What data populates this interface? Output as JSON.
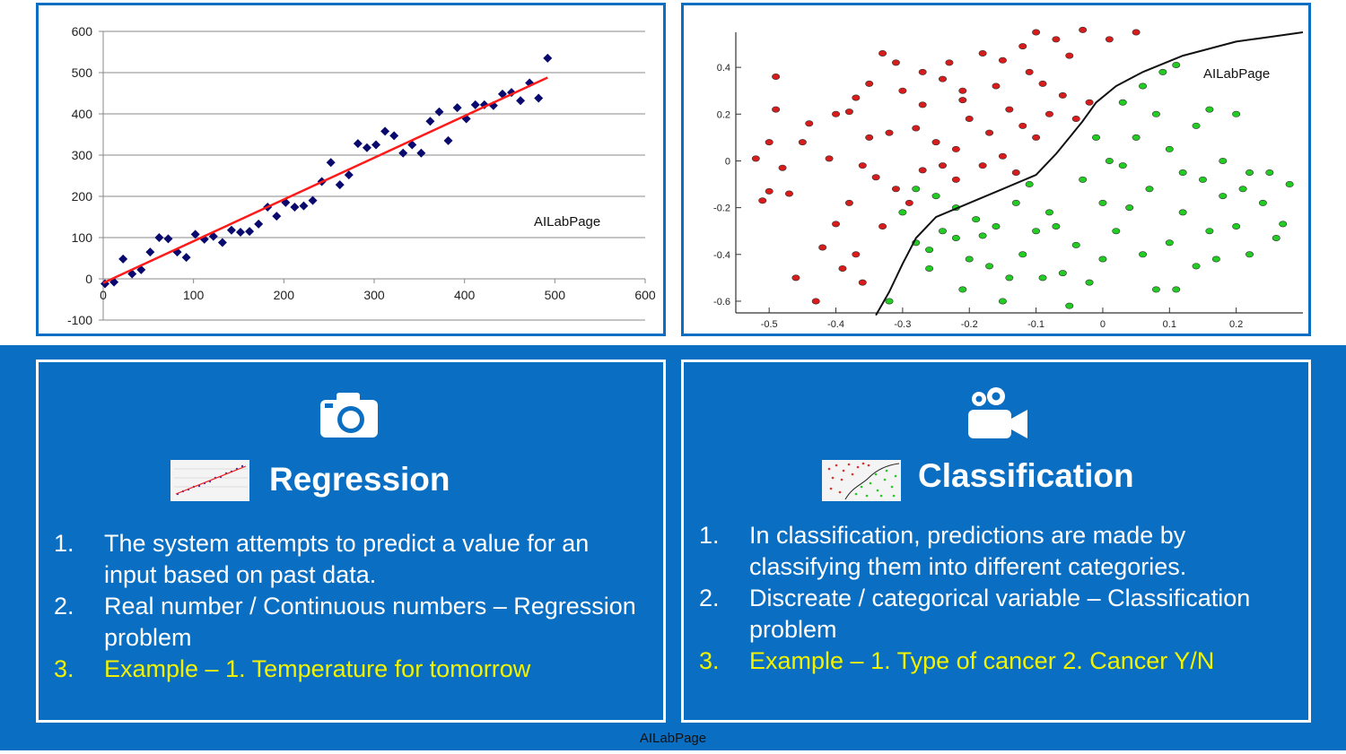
{
  "colors": {
    "band": "#0a6fc2",
    "regression_point": "#0a0a6e",
    "regression_line": "#ff1a1a",
    "class_red": "#d81b1b",
    "class_green": "#22cc22",
    "highlight_text": "#f2f200"
  },
  "watermark": "AILabPage",
  "chart_data": [
    {
      "type": "scatter",
      "name": "regression",
      "title": "",
      "xlabel": "",
      "ylabel": "",
      "xlim": [
        0,
        600
      ],
      "ylim": [
        -100,
        600
      ],
      "xticks": [
        "0",
        "100",
        "200",
        "300",
        "400",
        "500",
        "600"
      ],
      "yticks": [
        "600",
        "500",
        "400",
        "300",
        "200",
        "100",
        "0",
        "-100"
      ],
      "grid": true,
      "annotation": "AILabPage",
      "points": [
        [
          2,
          -12
        ],
        [
          12,
          -8
        ],
        [
          22,
          48
        ],
        [
          32,
          12
        ],
        [
          42,
          22
        ],
        [
          52,
          65
        ],
        [
          62,
          100
        ],
        [
          72,
          97
        ],
        [
          82,
          65
        ],
        [
          92,
          52
        ],
        [
          102,
          108
        ],
        [
          112,
          96
        ],
        [
          122,
          103
        ],
        [
          132,
          88
        ],
        [
          142,
          118
        ],
        [
          152,
          113
        ],
        [
          162,
          115
        ],
        [
          172,
          133
        ],
        [
          182,
          174
        ],
        [
          192,
          152
        ],
        [
          202,
          185
        ],
        [
          212,
          174
        ],
        [
          222,
          177
        ],
        [
          232,
          190
        ],
        [
          242,
          236
        ],
        [
          252,
          282
        ],
        [
          262,
          228
        ],
        [
          272,
          252
        ],
        [
          282,
          328
        ],
        [
          292,
          318
        ],
        [
          302,
          325
        ],
        [
          312,
          358
        ],
        [
          322,
          347
        ],
        [
          332,
          305
        ],
        [
          342,
          325
        ],
        [
          352,
          305
        ],
        [
          362,
          382
        ],
        [
          372,
          405
        ],
        [
          382,
          335
        ],
        [
          392,
          415
        ],
        [
          402,
          388
        ],
        [
          412,
          422
        ],
        [
          422,
          422
        ],
        [
          432,
          420
        ],
        [
          442,
          448
        ],
        [
          452,
          452
        ],
        [
          462,
          432
        ],
        [
          472,
          475
        ],
        [
          482,
          438
        ],
        [
          492,
          535
        ]
      ],
      "fit_line": {
        "x": [
          0,
          492
        ],
        "y": [
          -10,
          488
        ]
      }
    },
    {
      "type": "scatter",
      "name": "classification",
      "title": "",
      "xlim": [
        -0.55,
        0.3
      ],
      "ylim": [
        -0.65,
        0.55
      ],
      "xticks": [
        "-0.5",
        "-0.4",
        "-0.3",
        "-0.2",
        "-0.1",
        "0",
        "0.1",
        "0.2"
      ],
      "yticks": [
        "0.4",
        "0.2",
        "0",
        "-0.2",
        "-0.4",
        "-0.6"
      ],
      "annotation": "AILabPage",
      "decision_boundary": {
        "x": [
          -0.34,
          -0.32,
          -0.3,
          -0.28,
          -0.25,
          -0.2,
          -0.15,
          -0.1,
          -0.07,
          -0.05,
          -0.03,
          -0.01,
          0.02,
          0.06,
          0.12,
          0.2,
          0.25,
          0.3
        ],
        "y": [
          -0.66,
          -0.56,
          -0.44,
          -0.33,
          -0.24,
          -0.18,
          -0.12,
          -0.06,
          0.03,
          0.1,
          0.17,
          0.25,
          0.32,
          0.38,
          0.45,
          0.51,
          0.53,
          0.55
        ]
      },
      "series": [
        {
          "name": "class A",
          "color": "#d81b1b",
          "points": [
            [
              -0.58,
              0.12
            ],
            [
              -0.52,
              0.01
            ],
            [
              -0.49,
              0.36
            ],
            [
              -0.49,
              0.22
            ],
            [
              -0.5,
              0.08
            ],
            [
              -0.48,
              -0.03
            ],
            [
              -0.5,
              -0.13
            ],
            [
              -0.47,
              -0.14
            ],
            [
              -0.51,
              -0.17
            ],
            [
              -0.45,
              0.08
            ],
            [
              -0.4,
              0.2
            ],
            [
              -0.41,
              0.01
            ],
            [
              -0.38,
              0.21
            ],
            [
              -0.37,
              0.27
            ],
            [
              -0.35,
              0.33
            ],
            [
              -0.33,
              0.46
            ],
            [
              -0.31,
              0.42
            ],
            [
              -0.3,
              0.3
            ],
            [
              -0.27,
              0.38
            ],
            [
              -0.24,
              0.35
            ],
            [
              -0.21,
              0.3
            ],
            [
              -0.18,
              0.46
            ],
            [
              -0.15,
              0.43
            ],
            [
              -0.12,
              0.49
            ],
            [
              -0.1,
              0.55
            ],
            [
              -0.07,
              0.52
            ],
            [
              -0.05,
              0.45
            ],
            [
              -0.03,
              0.56
            ],
            [
              0.01,
              0.52
            ],
            [
              0.05,
              0.55
            ],
            [
              -0.35,
              0.1
            ],
            [
              -0.32,
              0.12
            ],
            [
              -0.28,
              0.14
            ],
            [
              -0.25,
              0.08
            ],
            [
              -0.22,
              0.05
            ],
            [
              -0.2,
              0.18
            ],
            [
              -0.17,
              0.12
            ],
            [
              -0.14,
              0.22
            ],
            [
              -0.12,
              0.15
            ],
            [
              -0.1,
              0.1
            ],
            [
              -0.08,
              0.2
            ],
            [
              -0.06,
              0.28
            ],
            [
              -0.04,
              0.18
            ],
            [
              -0.02,
              0.25
            ],
            [
              -0.36,
              -0.02
            ],
            [
              -0.34,
              -0.07
            ],
            [
              -0.31,
              -0.12
            ],
            [
              -0.29,
              -0.18
            ],
            [
              -0.27,
              -0.04
            ],
            [
              -0.24,
              -0.02
            ],
            [
              -0.22,
              -0.08
            ],
            [
              -0.18,
              -0.02
            ],
            [
              -0.15,
              0.02
            ],
            [
              -0.13,
              -0.05
            ],
            [
              -0.38,
              -0.18
            ],
            [
              -0.4,
              -0.27
            ],
            [
              -0.42,
              -0.37
            ],
            [
              -0.39,
              -0.46
            ],
            [
              -0.36,
              -0.52
            ],
            [
              -0.33,
              -0.28
            ],
            [
              -0.43,
              -0.6
            ],
            [
              -0.37,
              -0.4
            ],
            [
              -0.27,
              0.24
            ],
            [
              -0.16,
              0.32
            ],
            [
              -0.09,
              0.33
            ],
            [
              -0.23,
              0.42
            ],
            [
              -0.44,
              0.16
            ],
            [
              -0.46,
              -0.5
            ],
            [
              -0.21,
              0.26
            ],
            [
              -0.11,
              0.38
            ]
          ]
        },
        {
          "name": "class B",
          "color": "#22cc22",
          "points": [
            [
              -0.3,
              -0.22
            ],
            [
              -0.28,
              -0.35
            ],
            [
              -0.26,
              -0.46
            ],
            [
              -0.24,
              -0.3
            ],
            [
              -0.22,
              -0.2
            ],
            [
              -0.2,
              -0.42
            ],
            [
              -0.18,
              -0.32
            ],
            [
              -0.16,
              -0.28
            ],
            [
              -0.14,
              -0.5
            ],
            [
              -0.12,
              -0.4
            ],
            [
              -0.1,
              -0.3
            ],
            [
              -0.08,
              -0.22
            ],
            [
              -0.06,
              -0.48
            ],
            [
              -0.04,
              -0.36
            ],
            [
              -0.02,
              -0.52
            ],
            [
              0.0,
              -0.42
            ],
            [
              0.02,
              -0.3
            ],
            [
              0.04,
              -0.2
            ],
            [
              0.06,
              -0.4
            ],
            [
              0.08,
              -0.55
            ],
            [
              0.1,
              -0.35
            ],
            [
              0.12,
              -0.22
            ],
            [
              0.14,
              -0.45
            ],
            [
              0.16,
              -0.3
            ],
            [
              0.18,
              -0.15
            ],
            [
              0.2,
              -0.28
            ],
            [
              0.22,
              -0.4
            ],
            [
              0.24,
              -0.18
            ],
            [
              0.26,
              -0.33
            ],
            [
              0.28,
              -0.1
            ],
            [
              -0.28,
              -0.12
            ],
            [
              -0.25,
              -0.15
            ],
            [
              -0.22,
              -0.33
            ],
            [
              -0.19,
              -0.25
            ],
            [
              -0.17,
              -0.45
            ],
            [
              -0.13,
              -0.18
            ],
            [
              -0.11,
              -0.1
            ],
            [
              -0.09,
              -0.5
            ],
            [
              -0.07,
              -0.28
            ],
            [
              -0.05,
              -0.62
            ],
            [
              -0.03,
              -0.08
            ],
            [
              0.0,
              -0.18
            ],
            [
              0.03,
              -0.02
            ],
            [
              0.05,
              0.1
            ],
            [
              0.08,
              0.2
            ],
            [
              0.1,
              0.05
            ],
            [
              0.12,
              -0.05
            ],
            [
              0.14,
              0.15
            ],
            [
              0.16,
              0.22
            ],
            [
              0.18,
              0.0
            ],
            [
              0.2,
              0.2
            ],
            [
              0.22,
              -0.05
            ],
            [
              0.25,
              -0.05
            ],
            [
              0.03,
              0.25
            ],
            [
              0.06,
              0.32
            ],
            [
              0.09,
              0.38
            ],
            [
              0.11,
              0.41
            ],
            [
              -0.01,
              0.1
            ],
            [
              0.01,
              0.0
            ],
            [
              0.07,
              -0.12
            ],
            [
              0.15,
              -0.08
            ],
            [
              -0.32,
              -0.6
            ],
            [
              -0.15,
              -0.6
            ],
            [
              0.02,
              -0.66
            ],
            [
              0.11,
              -0.55
            ],
            [
              -0.21,
              -0.55
            ],
            [
              -0.26,
              -0.38
            ],
            [
              0.17,
              -0.42
            ],
            [
              0.21,
              -0.12
            ],
            [
              0.27,
              -0.27
            ]
          ]
        }
      ]
    }
  ],
  "regression_card": {
    "icon": "camera-icon",
    "title": "Regression",
    "items": [
      {
        "num": "1.",
        "text": "The system attempts to predict a value for  an input based on past data."
      },
      {
        "num": "2.",
        "text": "Real number / Continuous numbers – Regression problem"
      },
      {
        "num": "3.",
        "text": "Example – 1. Temperature for tomorrow"
      }
    ]
  },
  "classification_card": {
    "icon": "video-camera-icon",
    "title": "Classification",
    "items": [
      {
        "num": "1.",
        "text": "In classification, predictions are made by classifying them into different categories."
      },
      {
        "num": "2.",
        "text": "Discreate / categorical variable – Classification problem"
      },
      {
        "num": "3.",
        "text": "Example – 1. Type of cancer   2. Cancer Y/N"
      }
    ]
  }
}
